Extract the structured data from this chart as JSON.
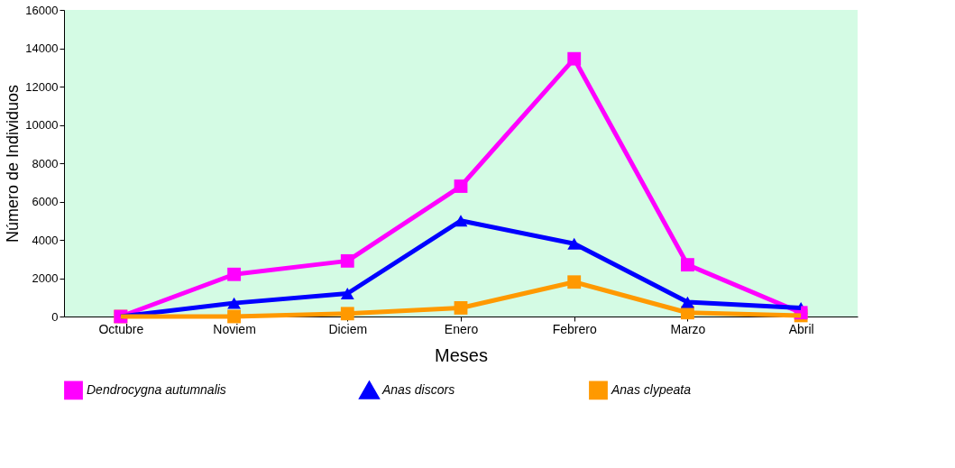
{
  "chart_data": {
    "type": "line",
    "xlabel": "Meses",
    "ylabel": "Número de Individuos",
    "categories": [
      "Octubre",
      "Noviem",
      "Diciem",
      "Enero",
      "Febrero",
      "Marzo",
      "Abril"
    ],
    "ylim": [
      0,
      16000
    ],
    "yticks": [
      0,
      2000,
      4000,
      6000,
      8000,
      10000,
      12000,
      14000,
      16000
    ],
    "grid": false,
    "legend": "bottom",
    "line_style": "solid",
    "series": [
      {
        "name": "Dendrocygna autumnalis",
        "color": "#ff00ff",
        "marker": "square",
        "values": [
          0,
          2200,
          2900,
          6800,
          13450,
          2700,
          200
        ]
      },
      {
        "name": "Anas discors",
        "color": "#0000ff",
        "marker": "triangle",
        "values": [
          0,
          700,
          1200,
          5000,
          3800,
          750,
          450
        ]
      },
      {
        "name": "Anas clypeata",
        "color": "#ff9900",
        "marker": "square",
        "values": [
          0,
          0,
          150,
          450,
          1800,
          200,
          50
        ]
      }
    ]
  }
}
